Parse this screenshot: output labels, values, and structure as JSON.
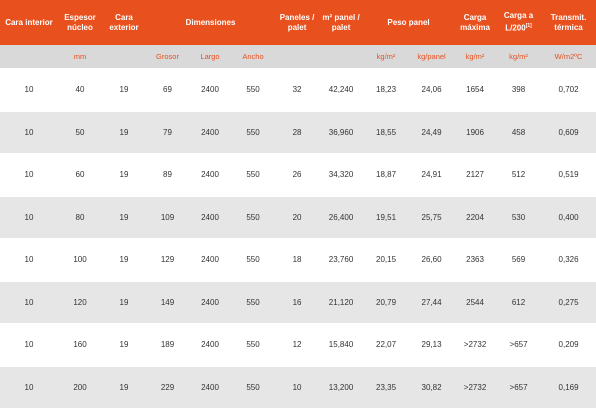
{
  "table": {
    "header": [
      "Cara interior",
      "Espesor núcleo",
      "Cara exterior",
      "Dimensiones",
      "Paneles / palet",
      "m² panel / palet",
      "Peso panel",
      "Carga máxima",
      "Carga a L/200",
      "Transmit. térmica"
    ],
    "header_note": "[1]",
    "units": [
      null,
      "mm",
      null,
      "Grosor",
      "Largo",
      "Ancho",
      null,
      null,
      "kg/m²",
      "kg/panel",
      "kg/m²",
      "kg/m²",
      "W/m2ºC"
    ],
    "rows": [
      [
        "10",
        "40",
        "19",
        "69",
        "2400",
        "550",
        "32",
        "42,240",
        "18,23",
        "24,06",
        "1654",
        "398",
        "0,702"
      ],
      [
        "10",
        "50",
        "19",
        "79",
        "2400",
        "550",
        "28",
        "36,960",
        "18,55",
        "24,49",
        "1906",
        "458",
        "0,609"
      ],
      [
        "10",
        "60",
        "19",
        "89",
        "2400",
        "550",
        "26",
        "34,320",
        "18,87",
        "24,91",
        "2127",
        "512",
        "0,519"
      ],
      [
        "10",
        "80",
        "19",
        "109",
        "2400",
        "550",
        "20",
        "26,400",
        "19,51",
        "25,75",
        "2204",
        "530",
        "0,400"
      ],
      [
        "10",
        "100",
        "19",
        "129",
        "2400",
        "550",
        "18",
        "23,760",
        "20,15",
        "26,60",
        "2363",
        "569",
        "0,326"
      ],
      [
        "10",
        "120",
        "19",
        "149",
        "2400",
        "550",
        "16",
        "21,120",
        "20,79",
        "27,44",
        "2544",
        "612",
        "0,275"
      ],
      [
        "10",
        "160",
        "19",
        "189",
        "2400",
        "550",
        "12",
        "15,840",
        "22,07",
        "29,13",
        ">2732",
        ">657",
        "0,209"
      ],
      [
        "10",
        "200",
        "19",
        "229",
        "2400",
        "550",
        "10",
        "13,200",
        "23,35",
        "30,82",
        ">2732",
        ">657",
        "0,169"
      ]
    ]
  }
}
